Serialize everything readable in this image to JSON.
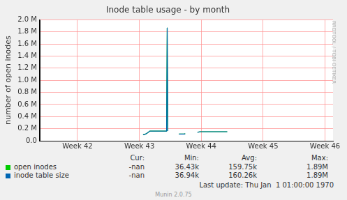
{
  "chart_data": {
    "type": "line",
    "title": "Inode table usage - by month",
    "ylabel": "number of open inodes",
    "side_text": "RRDTOOL / TOBI OETIKER",
    "x": [
      43.06,
      43.1,
      43.13,
      43.17,
      43.44,
      43.45,
      43.46,
      43.55,
      43.64,
      43.73,
      43.74,
      43.85,
      43.94,
      43.98,
      44.42
    ],
    "xlim": [
      41.39,
      46.13
    ],
    "xticks": [
      {
        "value": 42,
        "label": "Week 42"
      },
      {
        "value": 43,
        "label": "Week 43"
      },
      {
        "value": 44,
        "label": "Week 44"
      },
      {
        "value": 45,
        "label": "Week 45"
      },
      {
        "value": 46,
        "label": "Week 46"
      }
    ],
    "ylim": [
      0,
      2000000
    ],
    "yticks": [
      {
        "value": 0,
        "label": "0.0"
      },
      {
        "value": 200000,
        "label": "0.2 M"
      },
      {
        "value": 400000,
        "label": "0.4 M"
      },
      {
        "value": 600000,
        "label": "0.6 M"
      },
      {
        "value": 800000,
        "label": "0.8 M"
      },
      {
        "value": 1000000,
        "label": "1.0 M"
      },
      {
        "value": 1200000,
        "label": "1.2 M"
      },
      {
        "value": 1400000,
        "label": "1.4 M"
      },
      {
        "value": 1600000,
        "label": "1.6 M"
      },
      {
        "value": 1800000,
        "label": "1.8 M"
      },
      {
        "value": 2000000,
        "label": "2.0 M"
      }
    ],
    "grid": true,
    "legend_table": {
      "columns": [
        "Cur:",
        "Min:",
        "Avg:",
        "Max:"
      ]
    },
    "series": [
      {
        "name": "open inodes",
        "color": "#00cc00",
        "values": [
          100000,
          110000,
          130000,
          160000,
          160000,
          1870000,
          160000,
          null,
          110000,
          110000,
          120000,
          null,
          140000,
          150000,
          150000
        ],
        "stats": [
          "-nan",
          "36.43k",
          "159.75k",
          "1.89M"
        ]
      },
      {
        "name": "inode table size",
        "color": "#0066b3",
        "values": [
          100000,
          110000,
          130000,
          160000,
          160000,
          1870000,
          160000,
          null,
          110000,
          110000,
          120000,
          null,
          140000,
          150000,
          150000
        ],
        "stats": [
          "-nan",
          "36.94k",
          "160.26k",
          "1.89M"
        ]
      }
    ],
    "last_update": "Last update: Thu Jan  1 01:00:00 1970",
    "footer": "Munin 2.0.75"
  }
}
